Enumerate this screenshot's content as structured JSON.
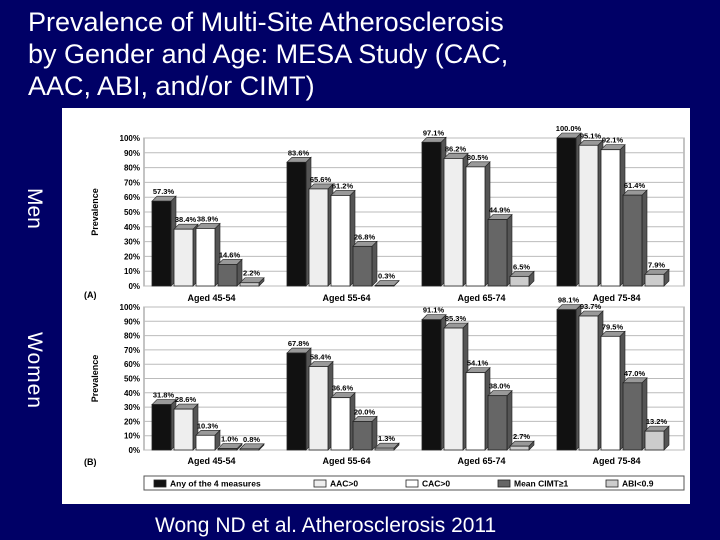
{
  "title_lines": [
    "Prevalence of Multi-Site Atherosclerosis",
    "by Gender and Age: MESA Study (CAC,",
    "AAC, ABI, and/or CIMT)"
  ],
  "side_labels": {
    "men": "Men",
    "women": "Women"
  },
  "citation": "Wong ND et al. Atherosclerosis 2011",
  "colors": {
    "background": "#000066",
    "any": "#111111",
    "aac": "#eeeeee",
    "cac": "#ffffff",
    "cimt": "#666666",
    "abi": "#cccccc"
  },
  "chart_data": [
    {
      "type": "bar",
      "panel_label": "(A)",
      "ylabel": "Prevalence",
      "ylim": [
        0,
        100
      ],
      "yticks": [
        "0%",
        "10%",
        "20%",
        "30%",
        "40%",
        "50%",
        "60%",
        "70%",
        "80%",
        "90%",
        "100%"
      ],
      "grid": true,
      "categories": [
        "Aged 45-54",
        "Aged 55-64",
        "Aged 65-74",
        "Aged 75-84"
      ],
      "series": [
        {
          "name": "Any of the 4 measures",
          "values": [
            57.3,
            83.6,
            97.1,
            100.0
          ],
          "labels": [
            "57.3%",
            "83.6%",
            "97.1%",
            "100.0%"
          ]
        },
        {
          "name": "AAC>0",
          "values": [
            38.4,
            65.6,
            86.2,
            95.1
          ],
          "labels": [
            "38.4%",
            "65.6%",
            "86.2%",
            "95.1%"
          ]
        },
        {
          "name": "CAC>0",
          "values": [
            38.9,
            61.2,
            80.5,
            92.1
          ],
          "labels": [
            "38.9%",
            "61.2%",
            "80.5%",
            "92.1%"
          ]
        },
        {
          "name": "Mean CIMT≥1",
          "values": [
            14.6,
            26.8,
            44.9,
            61.4
          ],
          "labels": [
            "14.6%",
            "26.8%",
            "44.9%",
            "61.4%"
          ]
        },
        {
          "name": "ABI<0.9",
          "values": [
            2.2,
            0.3,
            6.5,
            7.9
          ],
          "labels": [
            "2.2%",
            "0.3%",
            "6.5%",
            "7.9%"
          ]
        }
      ]
    },
    {
      "type": "bar",
      "panel_label": "(B)",
      "ylabel": "Prevalence",
      "ylim": [
        0,
        100
      ],
      "yticks": [
        "0%",
        "10%",
        "20%",
        "30%",
        "40%",
        "50%",
        "60%",
        "70%",
        "80%",
        "90%",
        "100%"
      ],
      "grid": true,
      "legend_position": "bottom",
      "categories": [
        "Aged 45-54",
        "Aged 55-64",
        "Aged 65-74",
        "Aged 75-84"
      ],
      "series": [
        {
          "name": "Any of the 4 measures",
          "values": [
            31.8,
            67.8,
            91.1,
            98.1
          ],
          "labels": [
            "31.8%",
            "67.8%",
            "91.1%",
            "98.1%"
          ]
        },
        {
          "name": "AAC>0",
          "values": [
            28.6,
            58.4,
            85.3,
            93.7
          ],
          "labels": [
            "28.6%",
            "58.4%",
            "85.3%",
            "93.7%"
          ]
        },
        {
          "name": "CAC>0",
          "values": [
            10.3,
            36.6,
            54.1,
            79.5
          ],
          "labels": [
            "10.3%",
            "36.6%",
            "54.1%",
            "79.5%"
          ]
        },
        {
          "name": "Mean CIMT≥1",
          "values": [
            1.0,
            20.0,
            38.0,
            47.0
          ],
          "labels": [
            "1.0%",
            "20.0%",
            "38.0%",
            "47.0%"
          ]
        },
        {
          "name": "ABI<0.9",
          "values": [
            0.8,
            1.3,
            2.7,
            13.2
          ],
          "labels": [
            "0.8%",
            "1.3%",
            "2.7%",
            "13.2%"
          ]
        }
      ]
    }
  ]
}
